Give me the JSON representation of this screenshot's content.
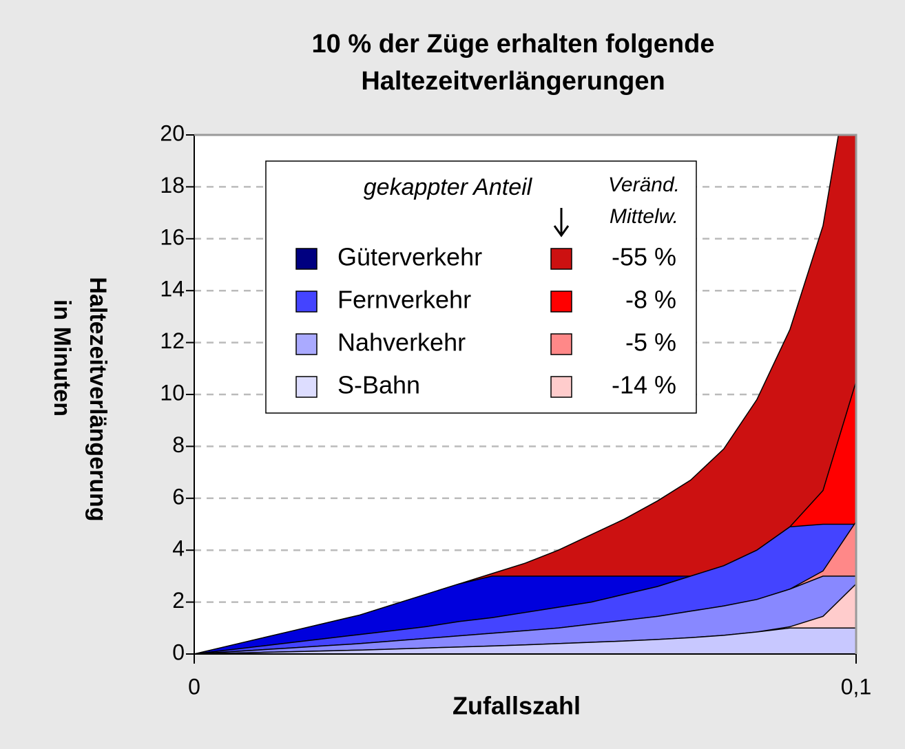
{
  "chart_data": {
    "type": "area",
    "title": [
      "10 % der Züge erhalten folgende",
      "Haltezeitverlängerungen"
    ],
    "xlabel": "Zufallszahl",
    "ylabel": [
      "Haltezeitverlängerung",
      "in Minuten"
    ],
    "legend_title": "gekappter Anteil",
    "change_header": [
      "Veränd.",
      "Mittelw."
    ],
    "x": [
      0,
      0.005,
      0.01,
      0.015,
      0.02,
      0.025,
      0.03,
      0.035,
      0.04,
      0.045,
      0.05,
      0.055,
      0.06,
      0.065,
      0.07,
      0.075,
      0.08,
      0.085,
      0.09,
      0.095,
      0.1
    ],
    "xlim": [
      0,
      0.1
    ],
    "xticks": [
      0,
      {
        "value": 0.1,
        "label": "0,1"
      }
    ],
    "ylim": [
      0,
      20
    ],
    "yticks": [
      0,
      2,
      4,
      6,
      8,
      10,
      12,
      14,
      16,
      18,
      20
    ],
    "grid": true,
    "series": [
      {
        "name": "Güterverkehr",
        "color": "#0000dd",
        "legend_color": "#000080",
        "cap_color": "#cc1111",
        "cap": 3,
        "change": -55,
        "change_label": "-55 %",
        "values": [
          0,
          0.3,
          0.6,
          0.9,
          1.2,
          1.5,
          1.9,
          2.3,
          2.7,
          3.1,
          3.5,
          4.0,
          4.6,
          5.2,
          5.9,
          6.7,
          7.9,
          9.8,
          12.5,
          16.5,
          24
        ]
      },
      {
        "name": "Fernverkehr",
        "color": "#4444ff",
        "legend_color": "#4444ff",
        "cap_color": "#ff0000",
        "cap": 5,
        "change": -8,
        "change_label": "-8 %",
        "values": [
          0,
          0.15,
          0.3,
          0.45,
          0.6,
          0.75,
          0.9,
          1.05,
          1.25,
          1.4,
          1.6,
          1.8,
          2.0,
          2.3,
          2.6,
          3.0,
          3.4,
          4.0,
          4.9,
          6.3,
          10.5
        ]
      },
      {
        "name": "Nahverkehr",
        "color": "#8888ff",
        "legend_color": "#aaaaff",
        "cap_color": "#ff8888",
        "cap": 3,
        "change": -5,
        "change_label": "-5 %",
        "values": [
          0,
          0.08,
          0.16,
          0.24,
          0.32,
          0.4,
          0.5,
          0.6,
          0.7,
          0.8,
          0.9,
          1.0,
          1.15,
          1.3,
          1.45,
          1.65,
          1.85,
          2.1,
          2.5,
          3.2,
          5.1
        ]
      },
      {
        "name": "S-Bahn",
        "color": "#c8c8ff",
        "legend_color": "#ddddff",
        "cap_color": "#ffcccc",
        "cap": 1,
        "change": -14,
        "change_label": "-14 %",
        "values": [
          0,
          0.03,
          0.06,
          0.09,
          0.12,
          0.15,
          0.19,
          0.23,
          0.27,
          0.31,
          0.35,
          0.4,
          0.45,
          0.5,
          0.56,
          0.63,
          0.72,
          0.85,
          1.05,
          1.45,
          2.7
        ]
      }
    ]
  }
}
